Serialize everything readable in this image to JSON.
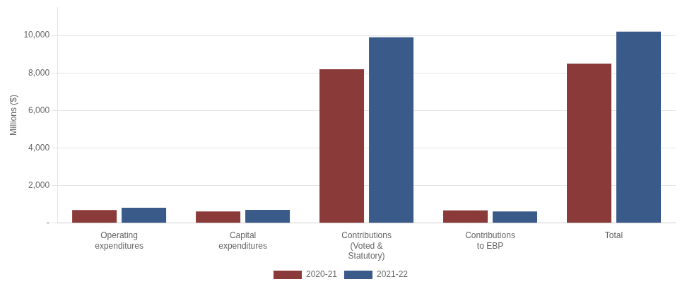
{
  "chart_data": {
    "type": "bar",
    "categories": [
      "Operating\nexpenditures",
      "Capital\nexpenditures",
      "Contributions\n(Voted &\nStatutory)",
      "Contributions\nto EBP",
      "Total"
    ],
    "series": [
      {
        "name": "2020-21",
        "color": "#8B3A3A",
        "values": [
          700,
          620,
          8200,
          680,
          8500
        ]
      },
      {
        "name": "2021-22",
        "color": "#3A5A8A",
        "values": [
          820,
          710,
          9900,
          620,
          10200
        ]
      }
    ],
    "ylabel": "Millions ($)",
    "ylim": [
      0,
      11500
    ],
    "yticks": [
      {
        "value": 0,
        "label": "-"
      },
      {
        "value": 2000,
        "label": "2,000"
      },
      {
        "value": 4000,
        "label": "4,000"
      },
      {
        "value": 6000,
        "label": "6,000"
      },
      {
        "value": 8000,
        "label": "8,000"
      },
      {
        "value": 10000,
        "label": "10,000"
      }
    ],
    "grid": true,
    "legend": "bottom"
  }
}
